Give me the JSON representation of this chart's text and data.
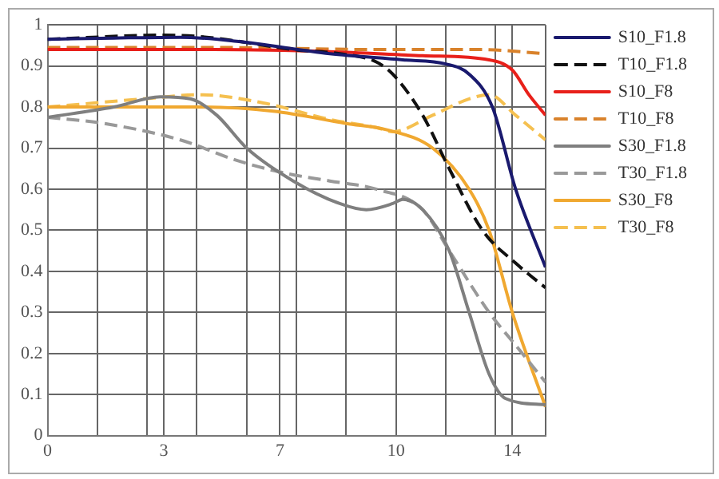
{
  "chart_data": {
    "type": "line",
    "xlim": [
      0,
      15
    ],
    "ylim": [
      0,
      1
    ],
    "xticks": [
      {
        "value": 0,
        "label": "0"
      },
      {
        "value": 1.5,
        "label": null
      },
      {
        "value": 3,
        "label": null
      },
      {
        "value": 3.5,
        "label": "3"
      },
      {
        "value": 4.5,
        "label": null
      },
      {
        "value": 6,
        "label": null
      },
      {
        "value": 7,
        "label": "7"
      },
      {
        "value": 7.5,
        "label": null
      },
      {
        "value": 9,
        "label": null
      },
      {
        "value": 10.5,
        "label": "10"
      },
      {
        "value": 12,
        "label": null
      },
      {
        "value": 13.5,
        "label": null
      },
      {
        "value": 14,
        "label": "14"
      },
      {
        "value": 15,
        "label": null
      }
    ],
    "yticks": [
      0,
      0.1,
      0.2,
      0.3,
      0.4,
      0.5,
      0.6,
      0.7,
      0.8,
      0.9,
      1
    ],
    "grid": true,
    "legend": "right",
    "marker": "none",
    "series": [
      {
        "name": "S10_F1.8",
        "color": "#1a1a6e",
        "line_style": "solid",
        "x": [
          0,
          2,
          4,
          5.7,
          8.5,
          10.7,
          12,
          12.7,
          13.4,
          14.1,
          15
        ],
        "values": [
          0.965,
          0.968,
          0.97,
          0.96,
          0.93,
          0.915,
          0.905,
          0.88,
          0.8,
          0.6,
          0.41
        ]
      },
      {
        "name": "T10_F1.8",
        "color": "#111111",
        "line_style": "dashed",
        "x": [
          0,
          3.5,
          4.8,
          7.4,
          8.8,
          9.9,
          10.4,
          11.3,
          12.1,
          13.1,
          14.1,
          15
        ],
        "values": [
          0.965,
          0.975,
          0.97,
          0.94,
          0.93,
          0.91,
          0.88,
          0.78,
          0.65,
          0.5,
          0.42,
          0.36
        ]
      },
      {
        "name": "S10_F8",
        "color": "#e8201a",
        "line_style": "solid",
        "x": [
          0,
          5,
          8.5,
          11.3,
          13.3,
          14,
          14.5,
          15
        ],
        "values": [
          0.94,
          0.94,
          0.935,
          0.925,
          0.915,
          0.89,
          0.83,
          0.78
        ]
      },
      {
        "name": "T10_F8",
        "color": "#d9822b",
        "line_style": "dashed",
        "x": [
          0,
          5,
          10,
          13,
          15
        ],
        "values": [
          0.945,
          0.945,
          0.94,
          0.94,
          0.93
        ]
      },
      {
        "name": "S30_F1.8",
        "color": "#7f7f7f",
        "line_style": "solid",
        "x": [
          0,
          2,
          3.4,
          4.3,
          5.1,
          6,
          7.4,
          8.8,
          9.6,
          10.4,
          10.7,
          11.3,
          12.1,
          12.7,
          13.3,
          13.8,
          15
        ],
        "values": [
          0.775,
          0.8,
          0.825,
          0.82,
          0.78,
          0.7,
          0.62,
          0.565,
          0.55,
          0.565,
          0.575,
          0.55,
          0.45,
          0.3,
          0.15,
          0.09,
          0.075
        ]
      },
      {
        "name": "T30_F1.8",
        "color": "#999999",
        "line_style": "dashed",
        "x": [
          0,
          1.7,
          4,
          5.7,
          7.1,
          8.5,
          9.9,
          11.3,
          12.1,
          13.3,
          14.1,
          15
        ],
        "values": [
          0.775,
          0.76,
          0.72,
          0.67,
          0.64,
          0.62,
          0.6,
          0.55,
          0.45,
          0.3,
          0.22,
          0.13
        ]
      },
      {
        "name": "S30_F8",
        "color": "#f0a830",
        "line_style": "solid",
        "x": [
          0,
          4.6,
          6.8,
          9,
          10.2,
          11.6,
          12.7,
          13.3,
          14,
          15
        ],
        "values": [
          0.8,
          0.8,
          0.79,
          0.76,
          0.745,
          0.7,
          0.6,
          0.5,
          0.3,
          0.07
        ]
      },
      {
        "name": "T30_F8",
        "color": "#f5c050",
        "line_style": "dashed",
        "x": [
          0,
          2.9,
          4.6,
          6.5,
          8.5,
          9.9,
          10.4,
          11.6,
          12.7,
          13.3,
          14.1,
          15
        ],
        "values": [
          0.8,
          0.82,
          0.83,
          0.81,
          0.77,
          0.75,
          0.74,
          0.78,
          0.82,
          0.83,
          0.78,
          0.72
        ]
      }
    ]
  }
}
